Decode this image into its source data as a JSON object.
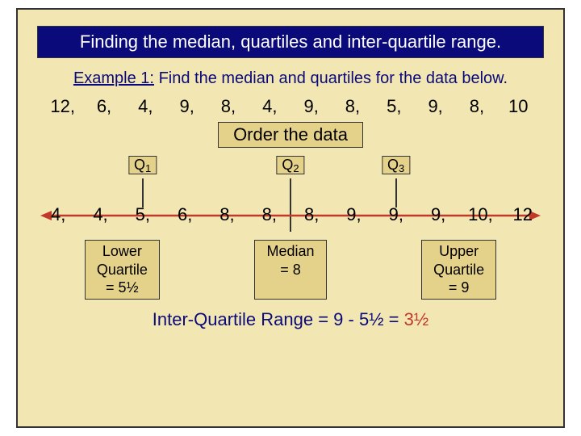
{
  "title": "Finding the median, quartiles and inter-quartile range.",
  "example": {
    "label": "Example 1:",
    "text": "Find the median and quartiles for the data below."
  },
  "unsorted": [
    "12,",
    "6,",
    "4,",
    "9,",
    "8,",
    "4,",
    "9,",
    "8,",
    "5,",
    "9,",
    "8,",
    "10"
  ],
  "order_label": "Order the data",
  "q_labels": {
    "q1": "Q",
    "q1_sub": "1",
    "q2": "Q",
    "q2_sub": "2",
    "q3": "Q",
    "q3_sub": "3"
  },
  "sorted": [
    "4,",
    "4,",
    "5,",
    "6,",
    "8,",
    "8,",
    "8,",
    "9,",
    "9,",
    "9,",
    "10,",
    "12"
  ],
  "results": {
    "lower": "Lower\nQuartile\n= 5½",
    "median": "Median\n= 8",
    "upper": "Upper\nQuartile\n= 9"
  },
  "iqr": {
    "prefix": "Inter-Quartile Range = 9 - 5½ = ",
    "result": "3½"
  },
  "style": {
    "arrow_color": "#c0392b",
    "q_positions_pct": {
      "q1": 20.8,
      "q2": 50,
      "q3": 70.8
    }
  }
}
